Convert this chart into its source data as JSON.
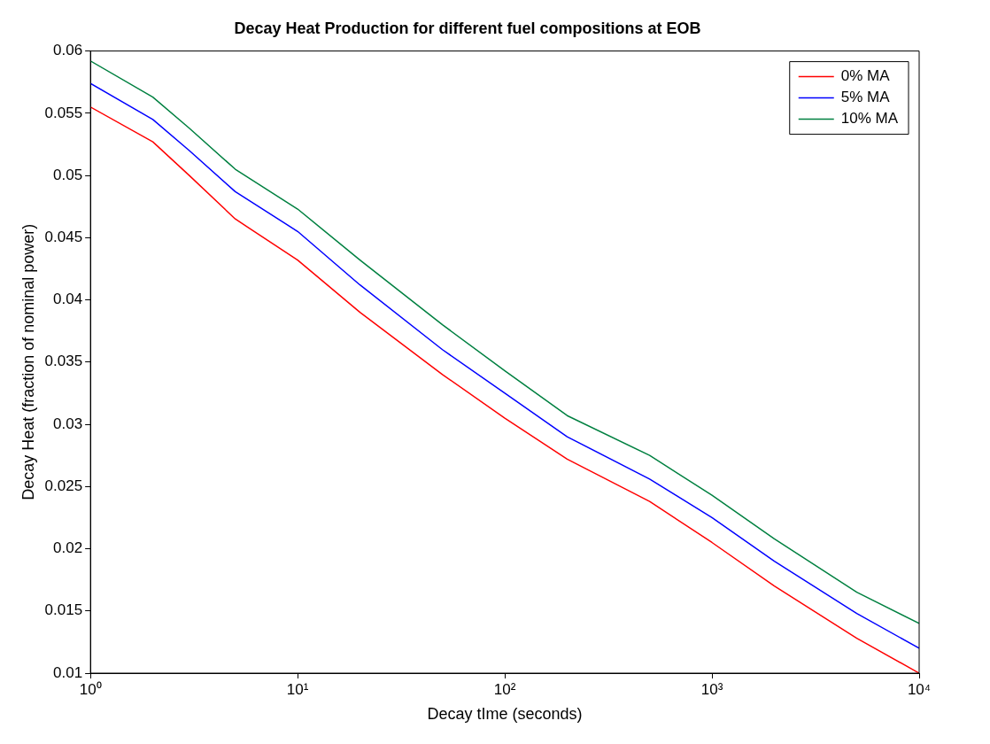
{
  "chart_data": {
    "type": "line",
    "title": "Decay Heat Production for different fuel compositions at EOB",
    "xlabel": "Decay tIme (seconds)",
    "ylabel": "Decay Heat (fraction of nominal power)",
    "x": [
      1,
      2,
      3,
      5,
      10,
      20,
      50,
      100,
      200,
      500,
      1000,
      2000,
      5000,
      10000
    ],
    "series": [
      {
        "name": "0% MA",
        "color": "#ff0000",
        "values": [
          0.0555,
          0.0527,
          0.05,
          0.0465,
          0.0432,
          0.039,
          0.034,
          0.0305,
          0.0272,
          0.0238,
          0.0205,
          0.017,
          0.0128,
          0.01
        ]
      },
      {
        "name": "5% MA",
        "color": "#0000ff",
        "values": [
          0.0574,
          0.0545,
          0.052,
          0.0487,
          0.0455,
          0.0412,
          0.036,
          0.0325,
          0.029,
          0.0256,
          0.0225,
          0.019,
          0.0148,
          0.012
        ]
      },
      {
        "name": "10% MA",
        "color": "#008040",
        "values": [
          0.0592,
          0.0563,
          0.0538,
          0.0505,
          0.0473,
          0.0432,
          0.038,
          0.0343,
          0.0307,
          0.0275,
          0.0243,
          0.0208,
          0.0165,
          0.014
        ]
      }
    ],
    "log": "x",
    "xlim": [
      1,
      10000
    ],
    "xticks": [
      {
        "value": 1,
        "label": "10⁰"
      },
      {
        "value": 10,
        "label": "10¹"
      },
      {
        "value": 100,
        "label": "10²"
      },
      {
        "value": 1000,
        "label": "10³"
      },
      {
        "value": 10000,
        "label": "10⁴"
      }
    ],
    "ylim": [
      0.01,
      0.06
    ],
    "yticks": [
      0.01,
      0.015,
      0.02,
      0.025,
      0.03,
      0.035,
      0.04,
      0.045,
      0.05,
      0.055,
      0.06
    ],
    "grid": false,
    "legend": "top right",
    "marker": "none",
    "line_style": "solid"
  }
}
